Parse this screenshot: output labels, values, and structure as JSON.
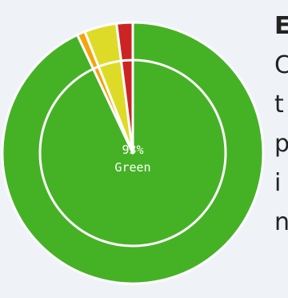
{
  "chart_data": {
    "type": "pie",
    "style": "donut",
    "categories": [
      "Green",
      "Orange",
      "Yellow",
      "Red"
    ],
    "values": [
      93,
      1,
      4,
      2
    ],
    "colors": [
      "#45b225",
      "#f5a30f",
      "#dedb28",
      "#cc2424"
    ],
    "center_label": {
      "value": "93%",
      "name": "Green"
    }
  },
  "side_text": {
    "heading": "E",
    "lines": [
      "C",
      "t",
      "p",
      "i",
      "n"
    ]
  }
}
